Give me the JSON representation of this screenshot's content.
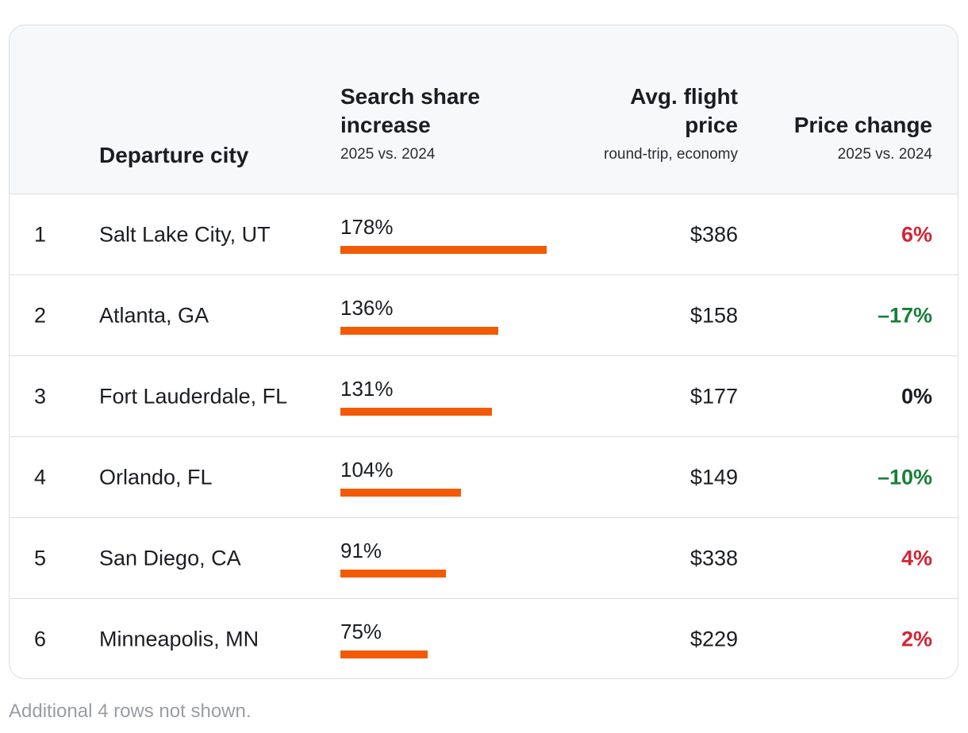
{
  "header": {
    "col_city": "Departure city",
    "col_search_title": "Search share increase",
    "col_search_sub": "2025 vs. 2024",
    "col_price_title": "Avg. flight price",
    "col_price_sub": "round-trip, economy",
    "col_change_title": "Price change",
    "col_change_sub": "2025 vs. 2024"
  },
  "colors": {
    "bar": "#f25a05",
    "increase": "#d32535",
    "decrease": "#188038",
    "neutral": "#1a1d21"
  },
  "chart_data": {
    "type": "table",
    "max_search_share": 178,
    "rows": [
      {
        "rank": "1",
        "city": "Salt Lake City, UT",
        "search_share": 178,
        "search_label": "178%",
        "price": "$386",
        "change": "6%",
        "change_dir": "up"
      },
      {
        "rank": "2",
        "city": "Atlanta, GA",
        "search_share": 136,
        "search_label": "136%",
        "price": "$158",
        "change": "–17%",
        "change_dir": "down"
      },
      {
        "rank": "3",
        "city": "Fort Lauderdale, FL",
        "search_share": 131,
        "search_label": "131%",
        "price": "$177",
        "change": "0%",
        "change_dir": "flat"
      },
      {
        "rank": "4",
        "city": "Orlando, FL",
        "search_share": 104,
        "search_label": "104%",
        "price": "$149",
        "change": "–10%",
        "change_dir": "down"
      },
      {
        "rank": "5",
        "city": "San Diego, CA",
        "search_share": 91,
        "search_label": "91%",
        "price": "$338",
        "change": "4%",
        "change_dir": "up"
      },
      {
        "rank": "6",
        "city": "Minneapolis, MN",
        "search_share": 75,
        "search_label": "75%",
        "price": "$229",
        "change": "2%",
        "change_dir": "up"
      }
    ]
  },
  "footnote": "Additional 4 rows not shown."
}
